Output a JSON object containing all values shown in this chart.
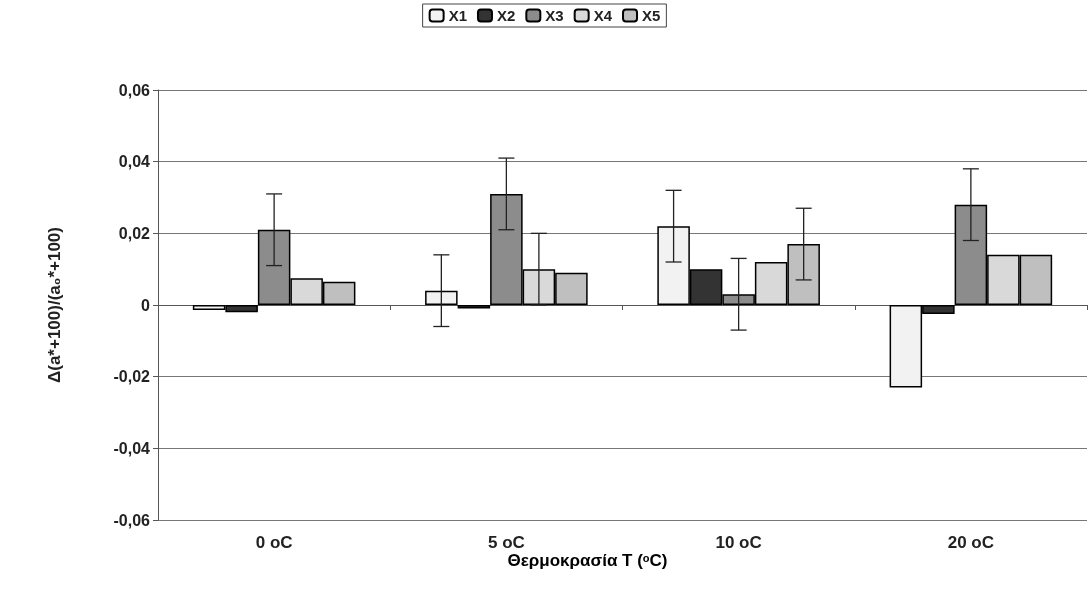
{
  "chart_data": {
    "type": "bar",
    "xlabel": "Θερμοκρασία T ($^{o}$C)",
    "ylabel": "Δ(a*+100)/(a₀*+100)",
    "categories": [
      "0 oC",
      "5 oC",
      "10 oC",
      "20 oC"
    ],
    "series": [
      {
        "name": "X1",
        "color": "#f2f2f2",
        "values": [
          -0.0014,
          0.004,
          0.022,
          -0.023
        ],
        "errors": [
          null,
          0.01,
          0.01,
          null
        ]
      },
      {
        "name": "X2",
        "color": "#333333",
        "values": [
          -0.002,
          -0.001,
          0.01,
          -0.0025
        ],
        "errors": [
          null,
          null,
          null,
          null
        ]
      },
      {
        "name": "X3",
        "color": "#8c8c8c",
        "values": [
          0.021,
          0.031,
          0.003,
          0.028
        ],
        "errors": [
          0.01,
          0.01,
          0.01,
          0.01
        ]
      },
      {
        "name": "X4",
        "color": "#d9d9d9",
        "values": [
          0.0075,
          0.01,
          0.012,
          0.014
        ],
        "errors": [
          null,
          0.01,
          null,
          null
        ]
      },
      {
        "name": "X5",
        "color": "#bfbfbf",
        "values": [
          0.0065,
          0.009,
          0.017,
          0.014
        ],
        "errors": [
          null,
          null,
          0.01,
          null
        ]
      }
    ],
    "ylim": [
      -0.06,
      0.06
    ],
    "yticks": [
      {
        "value": -0.06,
        "label": "-0,06"
      },
      {
        "value": -0.04,
        "label": "-0,04"
      },
      {
        "value": -0.02,
        "label": "-0,02"
      },
      {
        "value": 0,
        "label": "0"
      },
      {
        "value": 0.02,
        "label": "0,02"
      },
      {
        "value": 0.04,
        "label": "0,04"
      },
      {
        "value": 0.06,
        "label": "0,06"
      }
    ],
    "grid": "y",
    "legend": "top"
  }
}
